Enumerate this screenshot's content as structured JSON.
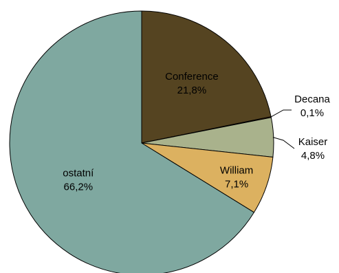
{
  "chart_data": {
    "type": "pie",
    "title": "",
    "slices": [
      {
        "label": "Conference",
        "value": 21.8,
        "display": "21,8%",
        "color": "#554421",
        "text_color": "#ffffff"
      },
      {
        "label": "Decana",
        "value": 0.1,
        "display": "0,1%",
        "color": "#d4692c",
        "text_color": "#000000"
      },
      {
        "label": "Kaiser",
        "value": 4.8,
        "display": "4,8%",
        "color": "#a9b28c",
        "text_color": "#000000"
      },
      {
        "label": "William",
        "value": 7.1,
        "display": "7,1%",
        "color": "#dcb160",
        "text_color": "#000000"
      },
      {
        "label": "ostatní",
        "value": 66.2,
        "display": "66,2%",
        "color": "#7fa8a0",
        "text_color": "#000000"
      }
    ],
    "start_angle_deg": 0,
    "direction": "clockwise",
    "legend": "none"
  }
}
